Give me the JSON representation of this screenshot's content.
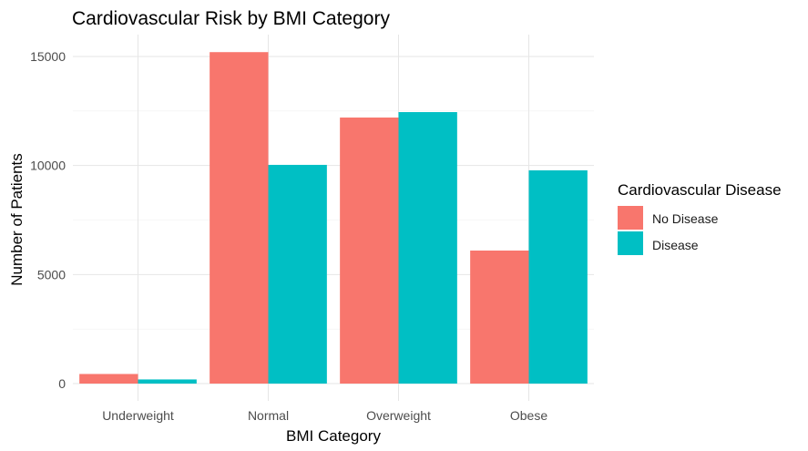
{
  "chart_data": {
    "type": "bar",
    "title": "Cardiovascular Risk by BMI Category",
    "xlabel": "BMI Category",
    "ylabel": "Number of Patients",
    "categories": [
      "Underweight",
      "Normal",
      "Overweight",
      "Obese"
    ],
    "series": [
      {
        "name": "No Disease",
        "values": [
          440,
          15200,
          12200,
          6100
        ],
        "color": "#F8766D"
      },
      {
        "name": "Disease",
        "values": [
          190,
          10030,
          12450,
          9780
        ],
        "color": "#00BFC4"
      }
    ],
    "ylim": [
      0,
      16000
    ],
    "yticks": [
      0,
      5000,
      10000,
      15000
    ],
    "ytick_labels": [
      "0",
      "5000",
      "10000",
      "15000"
    ],
    "grid": true,
    "legend": {
      "title": "Cardiovascular Disease",
      "position": "right"
    }
  }
}
